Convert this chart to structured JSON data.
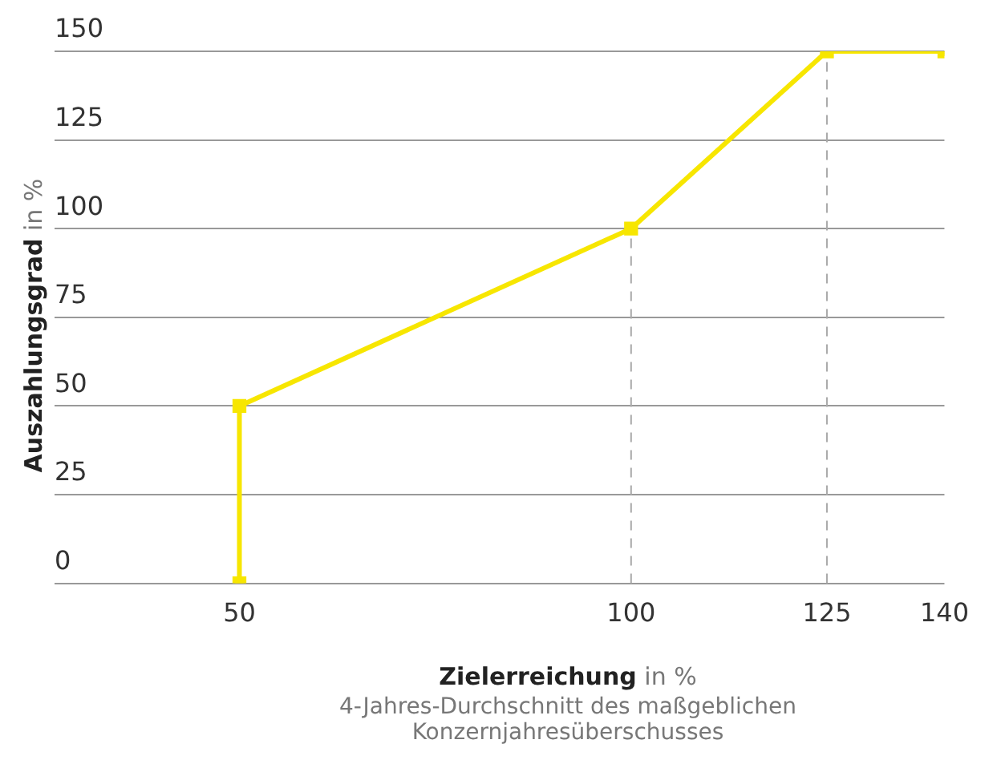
{
  "chart_data": {
    "type": "line",
    "xlabel": "Zielerreichung in %",
    "ylabel": "Auszahlungsgrad in %",
    "annotations": [
      "4-Jahres-Durchschnitt des maßgeblichen Konzernjahresüberschusses"
    ],
    "x": [
      50,
      50,
      100,
      125,
      140
    ],
    "series": [
      {
        "color": "#f7e600",
        "values": [
          0,
          50,
          100,
          150,
          150
        ]
      }
    ],
    "xlim": [
      35,
      140
    ],
    "xticks": [
      50,
      100,
      125,
      140
    ],
    "ylim": [
      0,
      150
    ],
    "yticks": [
      0,
      25,
      50,
      75,
      100,
      125,
      150
    ],
    "grid": "y",
    "legend": false,
    "marker": "square",
    "line_style": "solid",
    "ref_lines": [
      {
        "axis": "x",
        "value": 100,
        "color": "#aaaaaa",
        "line_style": "dashed"
      },
      {
        "axis": "x",
        "value": 125,
        "color": "#aaaaaa",
        "line_style": "dashed"
      }
    ]
  }
}
